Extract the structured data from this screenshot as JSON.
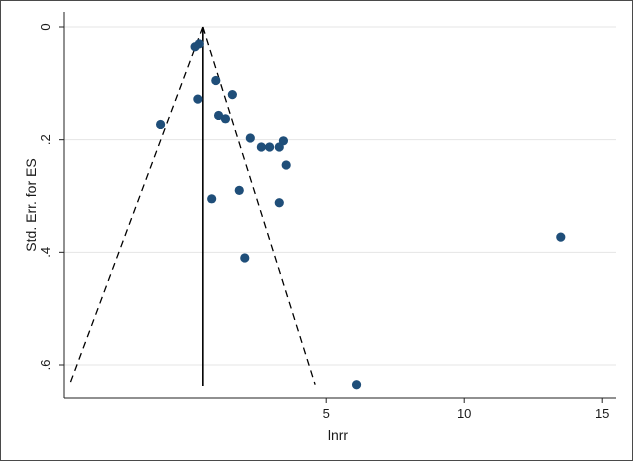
{
  "chart_data": {
    "type": "scatter",
    "subtype": "funnel-plot",
    "xlabel": "lnrr",
    "ylabel": "Std. Err. for ES",
    "x_ticks": [
      5,
      10,
      15
    ],
    "y_ticks": [
      "0",
      ".2",
      ".4",
      ".6"
    ],
    "y_tick_values": [
      0,
      0.2,
      0.4,
      0.6
    ],
    "y_reversed": true,
    "xlim": [
      -4.5,
      15.5
    ],
    "ylim": [
      0,
      0.64
    ],
    "grid": "horizontal",
    "pooled_estimate": 0.53,
    "funnel_base_x": [
      -4.3,
      4.6
    ],
    "funnel_base_se": 0.635,
    "points": [
      {
        "x": 0.4,
        "y": 0.03
      },
      {
        "x": 0.25,
        "y": 0.035
      },
      {
        "x": 1.0,
        "y": 0.095
      },
      {
        "x": 1.6,
        "y": 0.12
      },
      {
        "x": 0.35,
        "y": 0.128
      },
      {
        "x": 1.1,
        "y": 0.157
      },
      {
        "x": 1.35,
        "y": 0.163
      },
      {
        "x": -1.0,
        "y": 0.173
      },
      {
        "x": 2.25,
        "y": 0.197
      },
      {
        "x": 3.45,
        "y": 0.202
      },
      {
        "x": 2.65,
        "y": 0.213
      },
      {
        "x": 2.95,
        "y": 0.213
      },
      {
        "x": 3.3,
        "y": 0.213
      },
      {
        "x": 3.55,
        "y": 0.245
      },
      {
        "x": 1.85,
        "y": 0.29
      },
      {
        "x": 0.85,
        "y": 0.305
      },
      {
        "x": 3.3,
        "y": 0.312
      },
      {
        "x": 13.5,
        "y": 0.373
      },
      {
        "x": 2.05,
        "y": 0.41
      },
      {
        "x": 6.1,
        "y": 0.635
      }
    ],
    "colors": {
      "marker": "#1f4e79",
      "axis": "#222222",
      "grid": "#e5e5e5",
      "frame": "#4a4a4a"
    }
  }
}
